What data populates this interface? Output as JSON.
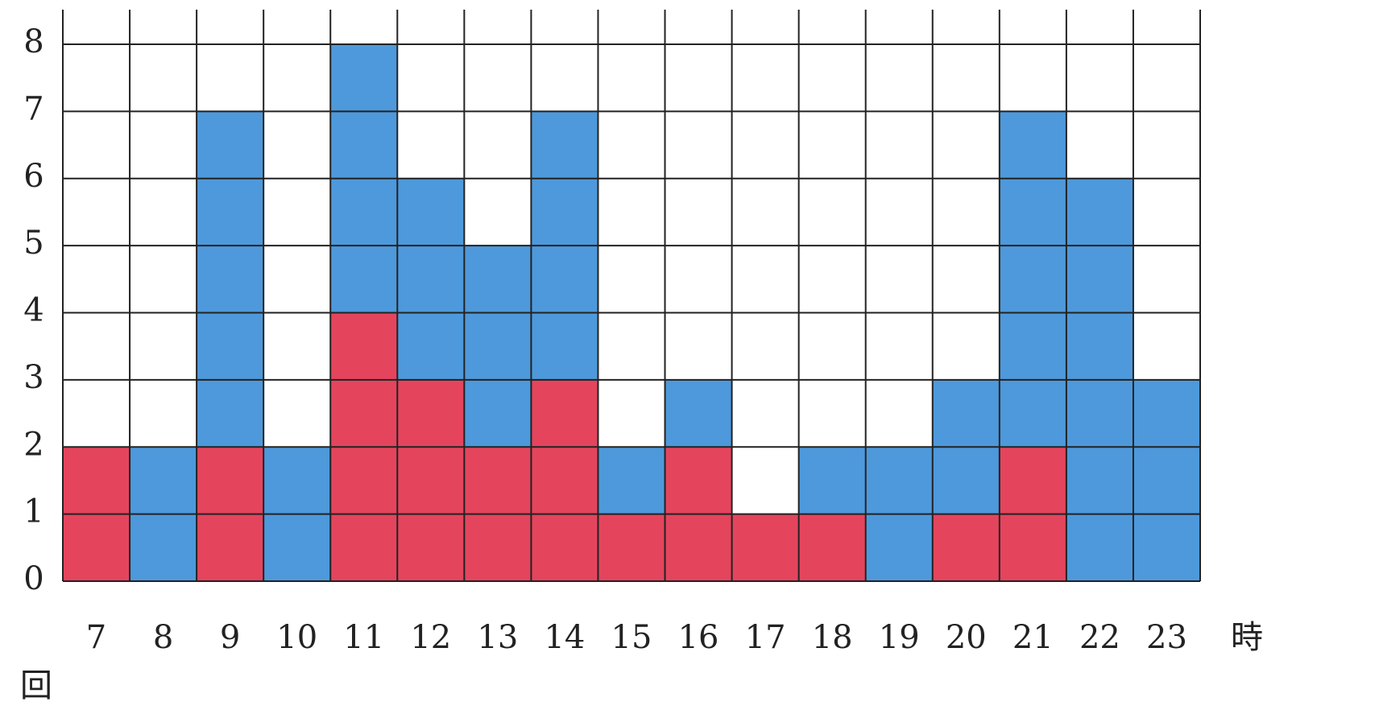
{
  "chart_data": {
    "type": "stacked_bar",
    "y_label": "回",
    "x_label": "時",
    "categories": [
      "7",
      "8",
      "9",
      "10",
      "11",
      "12",
      "13",
      "14",
      "15",
      "16",
      "17",
      "18",
      "19",
      "20",
      "21",
      "22",
      "23"
    ],
    "series": [
      {
        "color": "#e2354f",
        "values": [
          2,
          0,
          2,
          0,
          4,
          3,
          2,
          3,
          1,
          2,
          1,
          1,
          0,
          1,
          2,
          0,
          0
        ]
      },
      {
        "color": "#3f90d8",
        "values": [
          0,
          2,
          5,
          2,
          4,
          3,
          3,
          4,
          1,
          1,
          0,
          1,
          2,
          2,
          5,
          6,
          3
        ]
      }
    ],
    "ylim": [
      0,
      8
    ],
    "yticks": [
      0,
      1,
      2,
      3,
      4,
      5,
      6,
      7,
      8
    ],
    "grid": true
  }
}
